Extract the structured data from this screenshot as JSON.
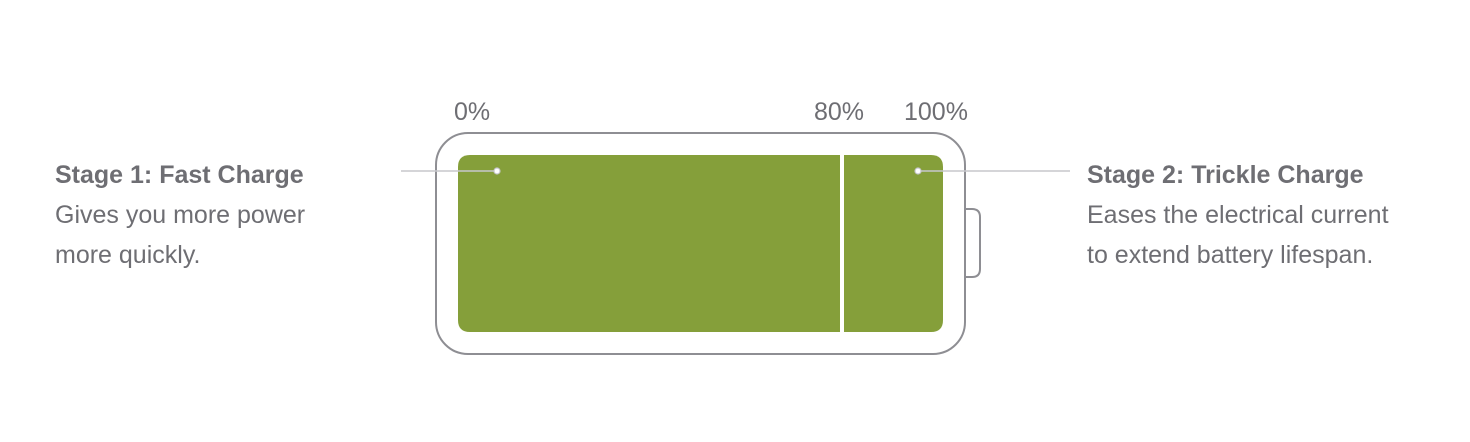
{
  "labels": {
    "zero": "0%",
    "eighty": "80%",
    "hundred": "100%"
  },
  "stage1": {
    "title": "Stage 1: Fast Charge",
    "line1": "Gives you more power",
    "line2": "more quickly."
  },
  "stage2": {
    "title": "Stage 2: Trickle Charge",
    "line1": "Eases the electrical current",
    "line2": "to extend battery lifespan."
  },
  "charge": {
    "fast_stage_end_percent": 80,
    "full_percent": 100
  },
  "colors": {
    "fill": "#859f3a",
    "outline": "#8e8e93",
    "leader": "#c7c7cc",
    "text": "#6e6e73"
  }
}
